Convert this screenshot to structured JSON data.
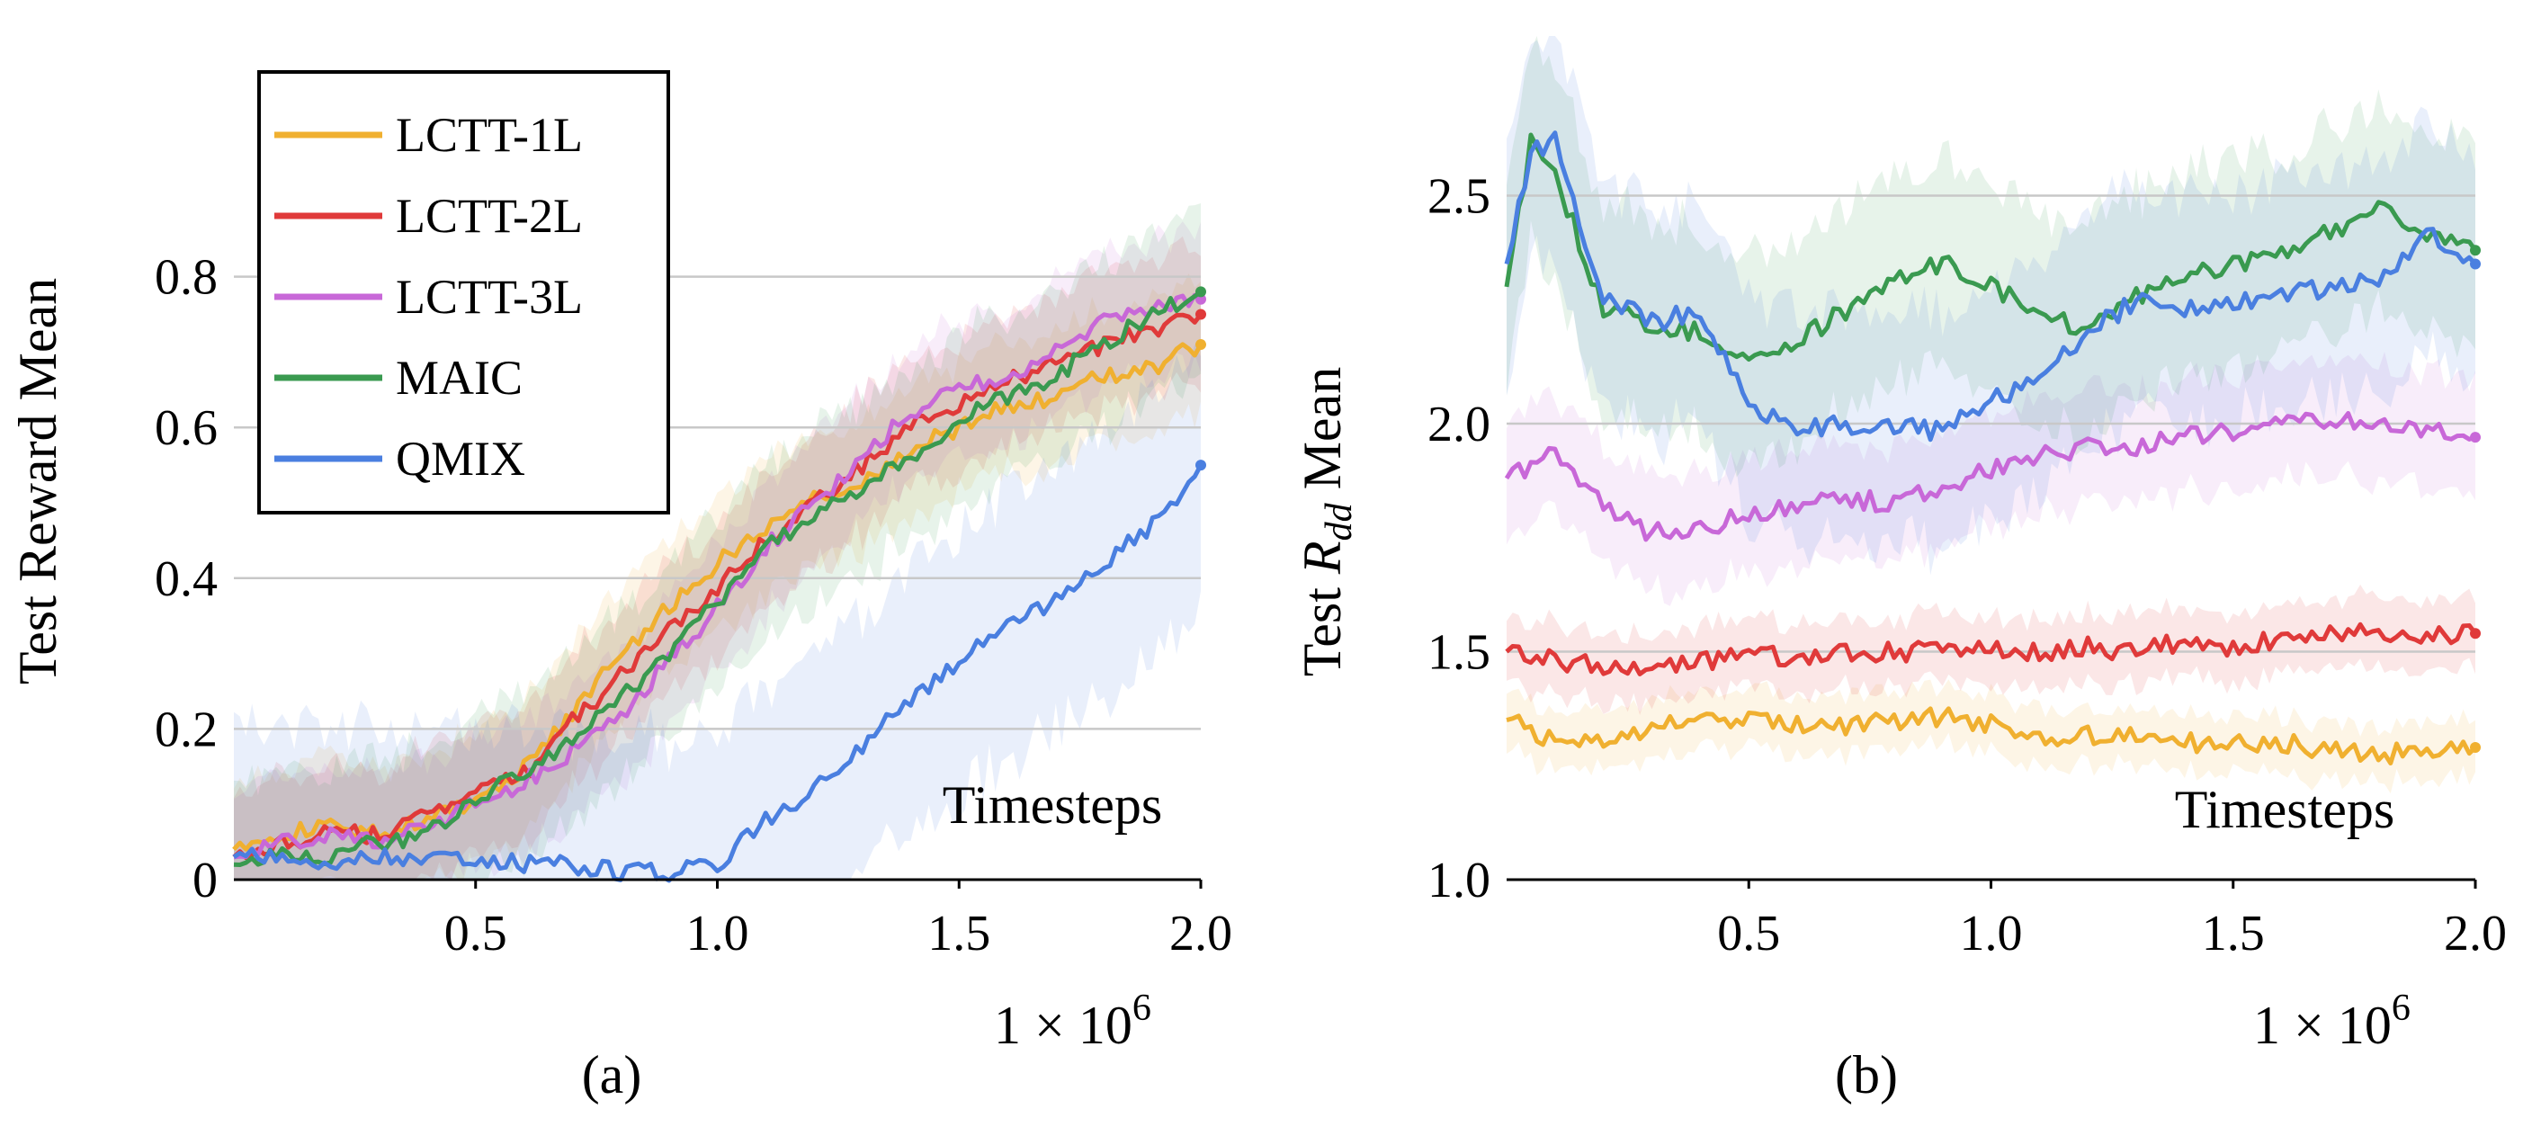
{
  "chart_data": [
    {
      "id": "a",
      "type": "line",
      "panel_label": "(a)",
      "ylabel": "Test Reward Mean",
      "xlabel": "Timesteps",
      "x_multiplier": "1 × 10",
      "x_multiplier_exp": "6",
      "xlim": [
        0,
        2.0
      ],
      "ylim": [
        0,
        1.0
      ],
      "xticks": [
        0.5,
        1.0,
        1.5,
        2.0
      ],
      "xtick_labels": [
        "0.5",
        "1.0",
        "1.5",
        "2.0"
      ],
      "yticks": [
        0,
        0.2,
        0.4,
        0.6,
        0.8
      ],
      "ytick_labels": [
        "0",
        "0.2",
        "0.4",
        "0.6",
        "0.8"
      ],
      "legend": {
        "placement": "top-left",
        "entries": [
          "LCTT-1L",
          "LCTT-2L",
          "LCTT-3L",
          "MAIC",
          "QMIX"
        ]
      },
      "series": [
        {
          "name": "LCTT-1L",
          "color": "#f0b030",
          "x": [
            0,
            0.1,
            0.2,
            0.3,
            0.4,
            0.5,
            0.6,
            0.7,
            0.8,
            0.9,
            1.0,
            1.1,
            1.2,
            1.3,
            1.4,
            1.5,
            1.6,
            1.7,
            1.8,
            1.9,
            2.0
          ],
          "values": [
            0.04,
            0.06,
            0.07,
            0.06,
            0.08,
            0.1,
            0.15,
            0.22,
            0.3,
            0.36,
            0.42,
            0.46,
            0.51,
            0.53,
            0.57,
            0.6,
            0.63,
            0.64,
            0.67,
            0.68,
            0.71
          ],
          "band": 0.07
        },
        {
          "name": "LCTT-2L",
          "color": "#e03a3a",
          "x": [
            0,
            0.1,
            0.2,
            0.3,
            0.4,
            0.5,
            0.6,
            0.7,
            0.8,
            0.9,
            1.0,
            1.1,
            1.2,
            1.3,
            1.4,
            1.5,
            1.6,
            1.7,
            1.8,
            1.9,
            2.0
          ],
          "values": [
            0.03,
            0.05,
            0.06,
            0.06,
            0.09,
            0.12,
            0.14,
            0.21,
            0.27,
            0.33,
            0.39,
            0.45,
            0.5,
            0.55,
            0.6,
            0.63,
            0.66,
            0.69,
            0.71,
            0.73,
            0.75
          ],
          "band": 0.07
        },
        {
          "name": "LCTT-3L",
          "color": "#c868d8",
          "x": [
            0,
            0.1,
            0.2,
            0.3,
            0.4,
            0.5,
            0.6,
            0.7,
            0.8,
            0.9,
            1.0,
            1.1,
            1.2,
            1.3,
            1.4,
            1.5,
            1.6,
            1.7,
            1.8,
            1.9,
            2.0
          ],
          "values": [
            0.03,
            0.05,
            0.06,
            0.05,
            0.07,
            0.1,
            0.13,
            0.17,
            0.22,
            0.29,
            0.36,
            0.44,
            0.5,
            0.56,
            0.62,
            0.65,
            0.67,
            0.7,
            0.74,
            0.76,
            0.77
          ],
          "band": 0.07
        },
        {
          "name": "MAIC",
          "color": "#3a9a50",
          "x": [
            0,
            0.1,
            0.2,
            0.3,
            0.4,
            0.5,
            0.6,
            0.7,
            0.8,
            0.9,
            1.0,
            1.1,
            1.2,
            1.3,
            1.4,
            1.5,
            1.6,
            1.7,
            1.8,
            1.9,
            2.0
          ],
          "values": [
            0.02,
            0.03,
            0.03,
            0.05,
            0.06,
            0.11,
            0.14,
            0.19,
            0.24,
            0.3,
            0.37,
            0.44,
            0.48,
            0.52,
            0.56,
            0.61,
            0.64,
            0.67,
            0.71,
            0.75,
            0.78
          ],
          "band": 0.09
        },
        {
          "name": "QMIX",
          "color": "#4a7fe0",
          "x": [
            0,
            0.1,
            0.2,
            0.3,
            0.4,
            0.5,
            0.6,
            0.7,
            0.8,
            0.9,
            1.0,
            1.1,
            1.2,
            1.3,
            1.4,
            1.5,
            1.6,
            1.7,
            1.8,
            1.9,
            2.0
          ],
          "values": [
            0.03,
            0.03,
            0.02,
            0.03,
            0.03,
            0.03,
            0.02,
            0.02,
            0.01,
            0.01,
            0.02,
            0.08,
            0.12,
            0.18,
            0.24,
            0.29,
            0.34,
            0.37,
            0.42,
            0.47,
            0.55
          ],
          "band": 0.14
        }
      ]
    },
    {
      "id": "b",
      "type": "line",
      "panel_label": "(b)",
      "ylabel_prefix": "Test ",
      "ylabel_math": "R",
      "ylabel_sub": "dd",
      "ylabel_suffix": " Mean",
      "xlabel": "Timesteps",
      "x_multiplier": "1 × 10",
      "x_multiplier_exp": "6",
      "xlim": [
        0,
        2.0
      ],
      "ylim": [
        1.0,
        2.85
      ],
      "xticks": [
        0.5,
        1.0,
        1.5,
        2.0
      ],
      "xtick_labels": [
        "0.5",
        "1.0",
        "1.5",
        "2.0"
      ],
      "yticks": [
        1.0,
        1.5,
        2.0,
        2.5
      ],
      "ytick_labels": [
        "1.0",
        "1.5",
        "2.0",
        "2.5"
      ],
      "series": [
        {
          "name": "LCTT-1L",
          "color": "#f0b030",
          "x": [
            0,
            0.1,
            0.2,
            0.3,
            0.4,
            0.5,
            0.6,
            0.7,
            0.8,
            0.9,
            1.0,
            1.1,
            1.2,
            1.3,
            1.4,
            1.5,
            1.6,
            1.7,
            1.8,
            1.9,
            2.0
          ],
          "values": [
            1.35,
            1.3,
            1.3,
            1.33,
            1.36,
            1.35,
            1.34,
            1.33,
            1.35,
            1.36,
            1.34,
            1.31,
            1.32,
            1.31,
            1.3,
            1.3,
            1.3,
            1.28,
            1.28,
            1.27,
            1.29
          ],
          "band": 0.05
        },
        {
          "name": "LCTT-2L",
          "color": "#e03a3a",
          "x": [
            0,
            0.1,
            0.2,
            0.3,
            0.4,
            0.5,
            0.6,
            0.7,
            0.8,
            0.9,
            1.0,
            1.1,
            1.2,
            1.3,
            1.4,
            1.5,
            1.6,
            1.7,
            1.8,
            1.9,
            2.0
          ],
          "values": [
            1.5,
            1.48,
            1.47,
            1.47,
            1.48,
            1.49,
            1.49,
            1.5,
            1.5,
            1.5,
            1.51,
            1.5,
            1.51,
            1.5,
            1.52,
            1.51,
            1.53,
            1.54,
            1.55,
            1.53,
            1.54
          ],
          "band": 0.06
        },
        {
          "name": "LCTT-3L",
          "color": "#c868d8",
          "x": [
            0,
            0.1,
            0.2,
            0.3,
            0.4,
            0.5,
            0.6,
            0.7,
            0.8,
            0.9,
            1.0,
            1.1,
            1.2,
            1.3,
            1.4,
            1.5,
            1.6,
            1.7,
            1.8,
            1.9,
            2.0
          ],
          "values": [
            1.88,
            1.93,
            1.82,
            1.76,
            1.77,
            1.8,
            1.82,
            1.83,
            1.83,
            1.86,
            1.9,
            1.93,
            1.95,
            1.95,
            1.97,
            1.98,
            2.0,
            2.01,
            1.99,
            1.99,
            1.97
          ],
          "band": 0.1
        },
        {
          "name": "MAIC",
          "color": "#3a9a50",
          "x": [
            0,
            0.05,
            0.1,
            0.2,
            0.3,
            0.4,
            0.5,
            0.6,
            0.7,
            0.8,
            0.9,
            1.0,
            1.1,
            1.2,
            1.3,
            1.4,
            1.5,
            1.6,
            1.7,
            1.8,
            1.9,
            2.0
          ],
          "values": [
            2.3,
            2.62,
            2.55,
            2.25,
            2.22,
            2.2,
            2.15,
            2.18,
            2.25,
            2.32,
            2.35,
            2.3,
            2.25,
            2.2,
            2.28,
            2.32,
            2.35,
            2.38,
            2.42,
            2.48,
            2.42,
            2.38
          ],
          "band": 0.18
        },
        {
          "name": "QMIX",
          "color": "#4a7fe0",
          "x": [
            0,
            0.05,
            0.1,
            0.2,
            0.3,
            0.4,
            0.5,
            0.6,
            0.7,
            0.8,
            0.9,
            1.0,
            1.1,
            1.2,
            1.3,
            1.4,
            1.5,
            1.6,
            1.7,
            1.8,
            1.9,
            2.0
          ],
          "values": [
            2.35,
            2.6,
            2.62,
            2.28,
            2.22,
            2.25,
            2.05,
            1.98,
            2.0,
            2.0,
            1.98,
            2.05,
            2.1,
            2.2,
            2.27,
            2.25,
            2.27,
            2.28,
            2.3,
            2.32,
            2.42,
            2.35
          ],
          "band": 0.2
        }
      ]
    }
  ]
}
